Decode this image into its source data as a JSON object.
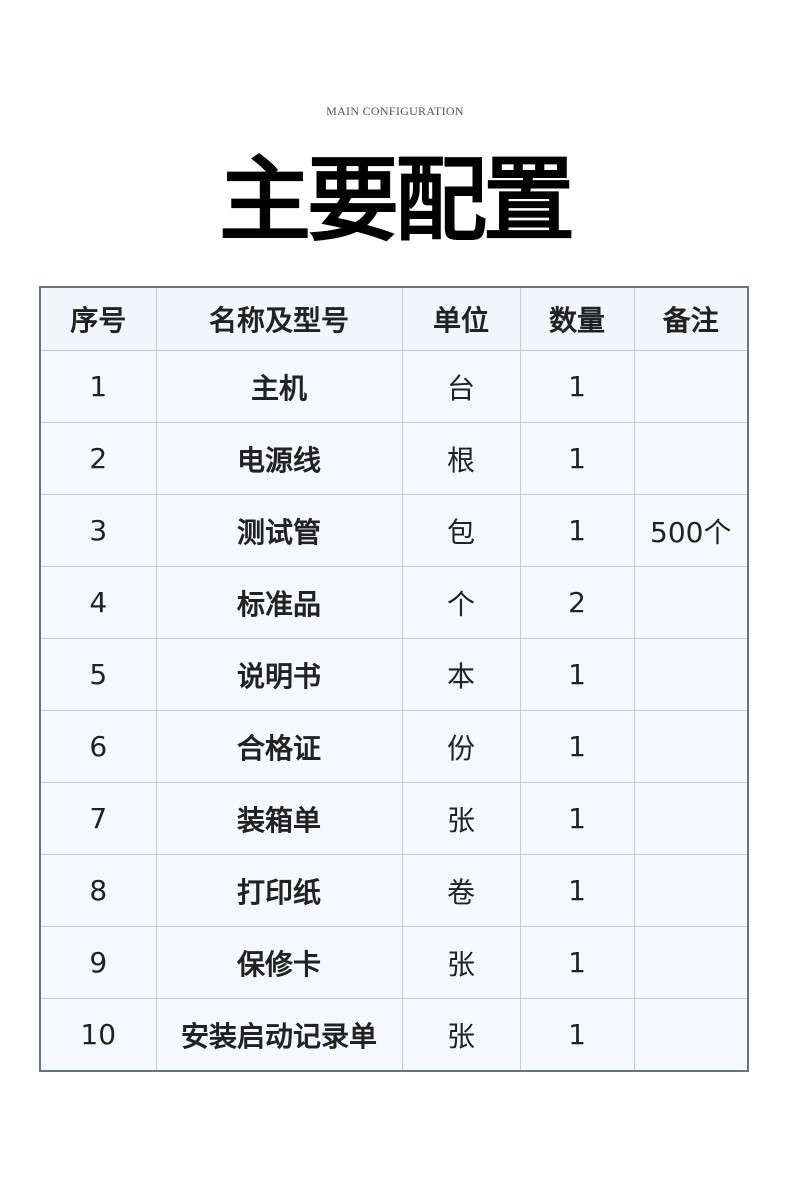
{
  "header": {
    "subtitle": "MAIN CONFIGURATION",
    "title": "主要配置"
  },
  "table": {
    "columns": [
      "序号",
      "名称及型号",
      "单位",
      "数量",
      "备注"
    ],
    "rows": [
      [
        1,
        "主机",
        "台",
        1,
        null
      ],
      [
        2,
        "电源线",
        "根",
        1,
        null
      ],
      [
        3,
        "测试管",
        "包",
        1,
        "500个"
      ],
      [
        4,
        "标准品",
        "个",
        2,
        null
      ],
      [
        5,
        "说明书",
        "本",
        1,
        null
      ],
      [
        6,
        "合格证",
        "份",
        1,
        null
      ],
      [
        7,
        "装箱单",
        "张",
        1,
        null
      ],
      [
        8,
        "打印纸",
        "卷",
        1,
        null
      ],
      [
        9,
        "保修卡",
        "张",
        1,
        null
      ],
      [
        10,
        "安装启动记录单",
        "张",
        1,
        null
      ]
    ]
  }
}
